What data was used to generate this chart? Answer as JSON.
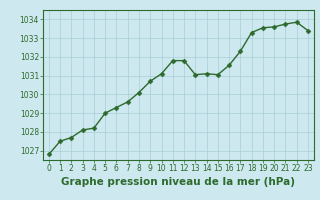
{
  "x": [
    0,
    1,
    2,
    3,
    4,
    5,
    6,
    7,
    8,
    9,
    10,
    11,
    12,
    13,
    14,
    15,
    16,
    17,
    18,
    19,
    20,
    21,
    22,
    23
  ],
  "y": [
    1026.8,
    1027.5,
    1027.7,
    1028.1,
    1028.2,
    1029.0,
    1029.3,
    1029.6,
    1030.1,
    1030.7,
    1031.1,
    1031.8,
    1031.8,
    1031.05,
    1031.1,
    1031.05,
    1031.55,
    1032.3,
    1033.3,
    1033.55,
    1033.6,
    1033.75,
    1033.85,
    1033.4
  ],
  "title": "Graphe pression niveau de la mer (hPa)",
  "line_color": "#2d6a2d",
  "marker_color": "#2d6a2d",
  "bg_color": "#cde8ee",
  "grid_color": "#a8cdd6",
  "title_color": "#2d6a2d",
  "tick_color": "#2d6a2d",
  "border_color": "#2d6a2d",
  "ylim": [
    1026.5,
    1034.5
  ],
  "yticks": [
    1027,
    1028,
    1029,
    1030,
    1031,
    1032,
    1033,
    1034
  ],
  "xlim": [
    -0.5,
    23.5
  ],
  "xticks": [
    0,
    1,
    2,
    3,
    4,
    5,
    6,
    7,
    8,
    9,
    10,
    11,
    12,
    13,
    14,
    15,
    16,
    17,
    18,
    19,
    20,
    21,
    22,
    23
  ],
  "title_fontsize": 7.5,
  "tick_fontsize": 5.5,
  "line_width": 1.0,
  "marker_size": 2.5
}
